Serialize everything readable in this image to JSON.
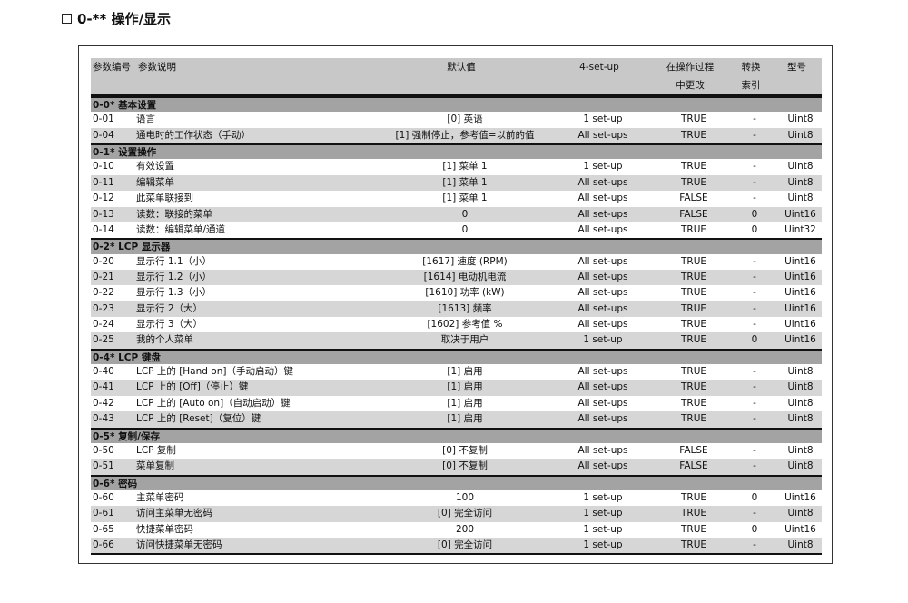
{
  "title": "0-** 操作/显示",
  "header": {
    "code": "参数编号",
    "desc": "参数说明",
    "default": "默认值",
    "setup": "4-set-up",
    "change": "在操作过程中更改",
    "conversion": "转换索引",
    "type": "型号"
  },
  "groups": [
    {
      "title": "0-0* 基本设置",
      "params": [
        [
          "0-01",
          "语言",
          "[0] 英语",
          "1 set-up",
          "TRUE",
          "-",
          "Uint8"
        ],
        [
          "0-04",
          "通电时的工作状态（手动）",
          "[1] 强制停止，参考值=以前的值",
          "All set-ups",
          "TRUE",
          "-",
          "Uint8"
        ]
      ]
    },
    {
      "title": "0-1* 设置操作",
      "params": [
        [
          "0-10",
          "有效设置",
          "[1] 菜单 1",
          "1 set-up",
          "TRUE",
          "-",
          "Uint8"
        ],
        [
          "0-11",
          "编辑菜单",
          "[1] 菜单 1",
          "All set-ups",
          "TRUE",
          "-",
          "Uint8"
        ],
        [
          "0-12",
          "此菜单联接到",
          "[1] 菜单 1",
          "All set-ups",
          "FALSE",
          "-",
          "Uint8"
        ],
        [
          "0-13",
          "读数：联接的菜单",
          "0",
          "All set-ups",
          "FALSE",
          "0",
          "Uint16"
        ],
        [
          "0-14",
          "读数：编辑菜单/通道",
          "0",
          "All set-ups",
          "TRUE",
          "0",
          "Uint32"
        ]
      ]
    },
    {
      "title": "0-2* LCP 显示器",
      "params": [
        [
          "0-20",
          "显示行 1.1（小）",
          "[1617] 速度 (RPM)",
          "All set-ups",
          "TRUE",
          "-",
          "Uint16"
        ],
        [
          "0-21",
          "显示行 1.2（小）",
          "[1614] 电动机电流",
          "All set-ups",
          "TRUE",
          "-",
          "Uint16"
        ],
        [
          "0-22",
          "显示行 1.3（小）",
          "[1610] 功率 (kW)",
          "All set-ups",
          "TRUE",
          "-",
          "Uint16"
        ],
        [
          "0-23",
          "显示行 2（大）",
          "[1613] 频率",
          "All set-ups",
          "TRUE",
          "-",
          "Uint16"
        ],
        [
          "0-24",
          "显示行 3（大）",
          "[1602] 参考值 %",
          "All set-ups",
          "TRUE",
          "-",
          "Uint16"
        ],
        [
          "0-25",
          "我的个人菜单",
          "取决于用户",
          "1 set-up",
          "TRUE",
          "0",
          "Uint16"
        ]
      ]
    },
    {
      "title": "0-4* LCP 键盘",
      "params": [
        [
          "0-40",
          "LCP 上的 [Hand on]（手动启动）键",
          "[1] 启用",
          "All set-ups",
          "TRUE",
          "-",
          "Uint8"
        ],
        [
          "0-41",
          "LCP 上的 [Off]（停止）键",
          "[1] 启用",
          "All set-ups",
          "TRUE",
          "-",
          "Uint8"
        ],
        [
          "0-42",
          "LCP 上的 [Auto on]（自动启动）键",
          "[1] 启用",
          "All set-ups",
          "TRUE",
          "-",
          "Uint8"
        ],
        [
          "0-43",
          "LCP 上的 [Reset]（复位）键",
          "[1] 启用",
          "All set-ups",
          "TRUE",
          "-",
          "Uint8"
        ]
      ]
    },
    {
      "title": "0-5* 复制/保存",
      "params": [
        [
          "0-50",
          "LCP 复制",
          "[0] 不复制",
          "All set-ups",
          "FALSE",
          "-",
          "Uint8"
        ],
        [
          "0-51",
          "菜单复制",
          "[0] 不复制",
          "All set-ups",
          "FALSE",
          "-",
          "Uint8"
        ]
      ]
    },
    {
      "title": "0-6* 密码",
      "params": [
        [
          "0-60",
          "主菜单密码",
          "100",
          "1 set-up",
          "TRUE",
          "0",
          "Uint16"
        ],
        [
          "0-61",
          "访问主菜单无密码",
          "[0] 完全访问",
          "1 set-up",
          "TRUE",
          "-",
          "Uint8"
        ],
        [
          "0-65",
          "快捷菜单密码",
          "200",
          "1 set-up",
          "TRUE",
          "0",
          "Uint16"
        ],
        [
          "0-66",
          "访问快捷菜单无密码",
          "[0] 完全访问",
          "1 set-up",
          "TRUE",
          "-",
          "Uint8"
        ]
      ]
    }
  ]
}
